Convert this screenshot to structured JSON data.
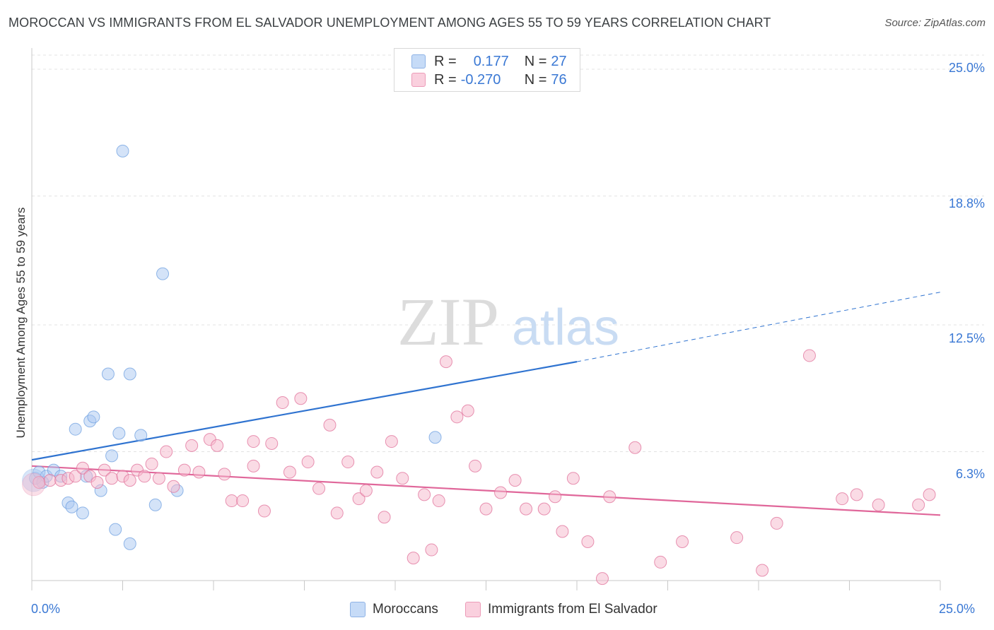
{
  "title": "MOROCCAN VS IMMIGRANTS FROM EL SALVADOR UNEMPLOYMENT AMONG AGES 55 TO 59 YEARS CORRELATION CHART",
  "source": "Source: ZipAtlas.com",
  "watermark": {
    "zip": "ZIP",
    "atlas": "atlas"
  },
  "legend": {
    "rows": [
      {
        "r_label": "R =",
        "r_value": "0.177",
        "n_label": "N =",
        "n_value": "27",
        "color": "#a9c8f2"
      },
      {
        "r_label": "R =",
        "r_value": "-0.270",
        "n_label": "N =",
        "n_value": "76",
        "color": "#f5b8cc"
      }
    ]
  },
  "bottom_legend": [
    "Moroccans",
    "Immigrants from El Salvador"
  ],
  "chart_data": {
    "type": "scatter",
    "title": "MOROCCAN VS IMMIGRANTS FROM EL SALVADOR UNEMPLOYMENT AMONG AGES 55 TO 59 YEARS CORRELATION CHART",
    "xlabel": "",
    "ylabel": "Unemployment Among Ages 55 to 59 years",
    "xlim": [
      0,
      25
    ],
    "ylim": [
      0,
      25
    ],
    "x_tick_labels": [
      "0.0%",
      "25.0%"
    ],
    "y_tick_labels": [
      "25.0%",
      "18.8%",
      "12.5%",
      "6.3%"
    ],
    "y_ticks": [
      25.0,
      18.8,
      12.5,
      6.3
    ],
    "grid": true,
    "series": [
      {
        "name": "Moroccans",
        "color": "#6fa0e0",
        "fill": "#a9c8f2",
        "trend": {
          "x0": 0,
          "y0": 5.9,
          "x1": 15,
          "y1": 10.7,
          "dash_to_x": 25,
          "dash_to_y": 14.1
        },
        "points": [
          [
            0.1,
            5.0
          ],
          [
            0.2,
            5.3
          ],
          [
            0.3,
            4.8
          ],
          [
            0.4,
            5.1
          ],
          [
            0.6,
            5.4
          ],
          [
            0.8,
            5.1
          ],
          [
            1.0,
            3.8
          ],
          [
            1.1,
            3.6
          ],
          [
            1.2,
            7.4
          ],
          [
            1.4,
            3.3
          ],
          [
            1.5,
            5.1
          ],
          [
            1.6,
            7.8
          ],
          [
            1.7,
            8.0
          ],
          [
            1.9,
            4.4
          ],
          [
            2.1,
            10.1
          ],
          [
            2.2,
            6.1
          ],
          [
            2.3,
            2.5
          ],
          [
            2.4,
            7.2
          ],
          [
            2.5,
            21.0
          ],
          [
            2.7,
            1.8
          ],
          [
            2.7,
            10.1
          ],
          [
            3.0,
            7.1
          ],
          [
            3.4,
            3.7
          ],
          [
            3.6,
            15.0
          ],
          [
            4.0,
            4.4
          ],
          [
            11.1,
            7.0
          ],
          [
            0.05,
            4.9
          ]
        ]
      },
      {
        "name": "Immigrants from El Salvador",
        "color": "#e0709a",
        "fill": "#f5b8cc",
        "trend": {
          "x0": 0,
          "y0": 5.6,
          "x1": 25,
          "y1": 3.2
        },
        "points": [
          [
            0.2,
            4.8
          ],
          [
            0.5,
            4.9
          ],
          [
            0.8,
            4.9
          ],
          [
            1.0,
            5.0
          ],
          [
            1.2,
            5.1
          ],
          [
            1.4,
            5.5
          ],
          [
            1.6,
            5.1
          ],
          [
            1.8,
            4.8
          ],
          [
            2.0,
            5.4
          ],
          [
            2.2,
            5.0
          ],
          [
            2.5,
            5.1
          ],
          [
            2.7,
            4.9
          ],
          [
            2.9,
            5.4
          ],
          [
            3.1,
            5.1
          ],
          [
            3.3,
            5.7
          ],
          [
            3.5,
            5.0
          ],
          [
            3.7,
            6.3
          ],
          [
            3.9,
            4.6
          ],
          [
            4.2,
            5.4
          ],
          [
            4.4,
            6.6
          ],
          [
            4.6,
            5.3
          ],
          [
            4.9,
            6.9
          ],
          [
            5.1,
            6.6
          ],
          [
            5.3,
            5.2
          ],
          [
            5.5,
            3.9
          ],
          [
            5.8,
            3.9
          ],
          [
            6.1,
            6.8
          ],
          [
            6.1,
            5.6
          ],
          [
            6.4,
            3.4
          ],
          [
            6.6,
            6.7
          ],
          [
            6.9,
            8.7
          ],
          [
            7.1,
            5.3
          ],
          [
            7.4,
            8.9
          ],
          [
            7.6,
            5.8
          ],
          [
            7.9,
            4.5
          ],
          [
            8.2,
            7.6
          ],
          [
            8.4,
            3.3
          ],
          [
            8.7,
            5.8
          ],
          [
            9.0,
            4.0
          ],
          [
            9.2,
            4.4
          ],
          [
            9.5,
            5.3
          ],
          [
            9.7,
            3.1
          ],
          [
            9.9,
            6.8
          ],
          [
            10.2,
            5.0
          ],
          [
            10.5,
            1.1
          ],
          [
            10.8,
            4.2
          ],
          [
            11.0,
            1.5
          ],
          [
            11.2,
            3.9
          ],
          [
            11.4,
            10.7
          ],
          [
            11.7,
            8.0
          ],
          [
            12.0,
            8.3
          ],
          [
            12.2,
            5.6
          ],
          [
            12.5,
            3.5
          ],
          [
            12.9,
            4.3
          ],
          [
            13.3,
            4.9
          ],
          [
            13.6,
            3.5
          ],
          [
            14.1,
            3.5
          ],
          [
            14.4,
            4.1
          ],
          [
            14.6,
            2.4
          ],
          [
            14.9,
            5.0
          ],
          [
            15.3,
            1.9
          ],
          [
            15.7,
            0.1
          ],
          [
            15.9,
            4.1
          ],
          [
            16.6,
            6.5
          ],
          [
            17.3,
            0.9
          ],
          [
            17.9,
            1.9
          ],
          [
            19.4,
            2.1
          ],
          [
            20.1,
            0.5
          ],
          [
            20.5,
            2.8
          ],
          [
            21.4,
            11.0
          ],
          [
            22.3,
            4.0
          ],
          [
            22.7,
            4.2
          ],
          [
            23.3,
            3.7
          ],
          [
            24.4,
            3.7
          ],
          [
            24.7,
            4.2
          ],
          [
            0.05,
            4.7
          ]
        ]
      }
    ]
  }
}
